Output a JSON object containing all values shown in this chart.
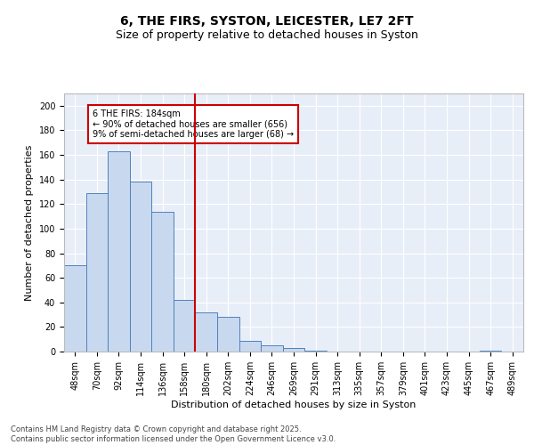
{
  "title": "6, THE FIRS, SYSTON, LEICESTER, LE7 2FT",
  "subtitle": "Size of property relative to detached houses in Syston",
  "xlabel": "Distribution of detached houses by size in Syston",
  "ylabel": "Number of detached properties",
  "categories": [
    "48sqm",
    "70sqm",
    "92sqm",
    "114sqm",
    "136sqm",
    "158sqm",
    "180sqm",
    "202sqm",
    "224sqm",
    "246sqm",
    "269sqm",
    "291sqm",
    "313sqm",
    "335sqm",
    "357sqm",
    "379sqm",
    "401sqm",
    "423sqm",
    "445sqm",
    "467sqm",
    "489sqm"
  ],
  "values": [
    70,
    129,
    163,
    138,
    114,
    42,
    32,
    28,
    9,
    5,
    3,
    1,
    0,
    0,
    0,
    0,
    0,
    0,
    0,
    1,
    0
  ],
  "bar_color": "#c8d9ef",
  "bar_edge_color": "#4f81bd",
  "vline_color": "#cc0000",
  "annotation_text": "6 THE FIRS: 184sqm\n← 90% of detached houses are smaller (656)\n9% of semi-detached houses are larger (68) →",
  "annotation_box_color": "#ffffff",
  "annotation_box_edge": "#cc0000",
  "footnote": "Contains HM Land Registry data © Crown copyright and database right 2025.\nContains public sector information licensed under the Open Government Licence v3.0.",
  "ylim": [
    0,
    210
  ],
  "yticks": [
    0,
    20,
    40,
    60,
    80,
    100,
    120,
    140,
    160,
    180,
    200
  ],
  "title_fontsize": 10,
  "subtitle_fontsize": 9,
  "label_fontsize": 8,
  "tick_fontsize": 7,
  "bg_color": "#e8eef8",
  "fig_bg_color": "#ffffff"
}
